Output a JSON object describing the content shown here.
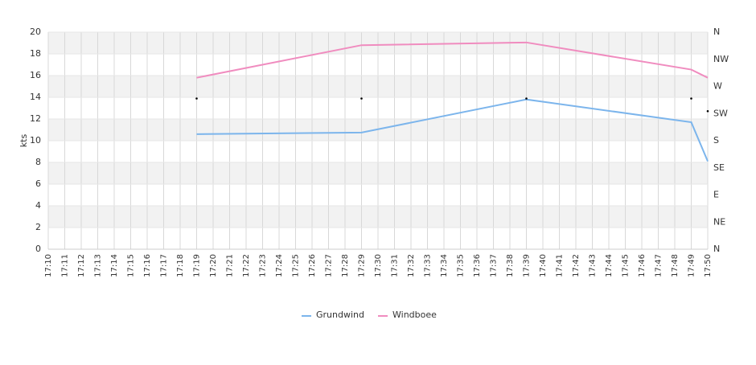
{
  "chart_data": {
    "type": "line",
    "categories": [
      "17:10",
      "17:11",
      "17:12",
      "17:13",
      "17:14",
      "17:15",
      "17:16",
      "17:17",
      "17:18",
      "17:19",
      "17:20",
      "17:21",
      "17:22",
      "17:23",
      "17:24",
      "17:25",
      "17:26",
      "17:27",
      "17:28",
      "17:29",
      "17:30",
      "17:31",
      "17:32",
      "17:33",
      "17:34",
      "17:35",
      "17:36",
      "17:37",
      "17:38",
      "17:39",
      "17:40",
      "17:41",
      "17:42",
      "17:43",
      "17:44",
      "17:45",
      "17:46",
      "17:47",
      "17:48",
      "17:49",
      "17:50"
    ],
    "y_label": "kts",
    "ylim": [
      0,
      20
    ],
    "yticks": [
      0,
      2,
      4,
      6,
      8,
      10,
      12,
      14,
      16,
      18,
      20
    ],
    "y2lim": [
      0,
      360
    ],
    "y2ticks": [
      {
        "value": 0,
        "label": "N"
      },
      {
        "value": 45,
        "label": "NE"
      },
      {
        "value": 90,
        "label": "E"
      },
      {
        "value": 135,
        "label": "SE"
      },
      {
        "value": 180,
        "label": "S"
      },
      {
        "value": 225,
        "label": "SW"
      },
      {
        "value": 270,
        "label": "W"
      },
      {
        "value": 315,
        "label": "NW"
      },
      {
        "value": 360,
        "label": "N"
      }
    ],
    "grid": true,
    "banded": true,
    "legend": "bottom",
    "series": [
      {
        "name": "Grundwind",
        "color": "#7cb5ec",
        "x": [
          "17:19",
          "17:29",
          "17:39",
          "17:49",
          "17:50"
        ],
        "values": [
          10.6,
          10.75,
          13.8,
          11.7,
          8.1
        ]
      },
      {
        "name": "Windboee",
        "color": "#f08cbf",
        "x": [
          "17:19",
          "17:29",
          "17:39",
          "17:49",
          "17:50"
        ],
        "values": [
          15.8,
          18.8,
          19.05,
          16.55,
          15.8
        ]
      },
      {
        "color": "#000000",
        "axis": "y2",
        "x": [
          "17:19",
          "17:29",
          "17:39",
          "17:49",
          "17:50"
        ],
        "values": [
          250,
          250,
          250,
          250,
          229
        ]
      }
    ]
  }
}
